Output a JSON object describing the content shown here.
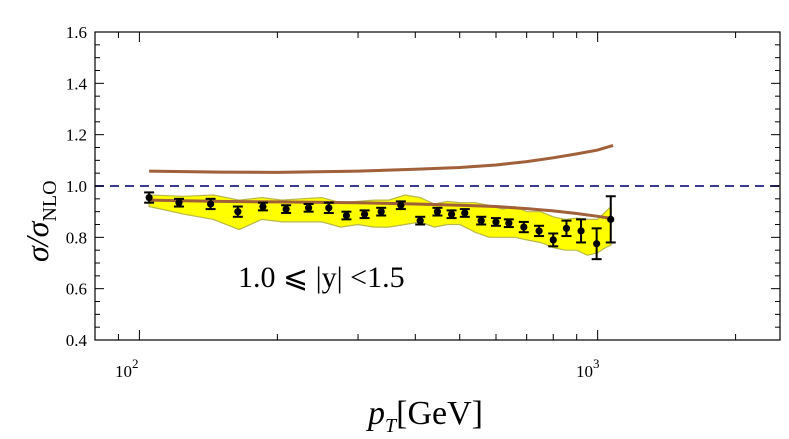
{
  "chart_data": {
    "type": "scatter",
    "x_scale": "log",
    "xlim": [
      80,
      2500
    ],
    "ylim": [
      0.4,
      1.6
    ],
    "y_ticks": [
      "0.4",
      "0.6",
      "0.8",
      "1.0",
      "1.2",
      "1.4",
      "1.6"
    ],
    "x_tick_labels": [
      {
        "base": "10",
        "exp": "2",
        "value": 100
      },
      {
        "base": "10",
        "exp": "3",
        "value": 1000
      }
    ],
    "ylabel": {
      "main": "σ/σ",
      "sub": "NLO"
    },
    "xlabel": {
      "main": "p",
      "sub": "T",
      "unit": "[GeV]"
    },
    "annotation": "1.0 ⩽ |y| <1.5",
    "reference_line": {
      "y": 1.0,
      "color": "#3b3b8f",
      "style": "dashed"
    },
    "band": {
      "color": "#ffff00",
      "edge_color": "#b8b84a",
      "upper": [
        [
          105,
          0.965
        ],
        [
          125,
          0.96
        ],
        [
          145,
          0.965
        ],
        [
          165,
          0.945
        ],
        [
          185,
          0.955
        ],
        [
          205,
          0.945
        ],
        [
          225,
          0.95
        ],
        [
          250,
          0.955
        ],
        [
          275,
          0.935
        ],
        [
          300,
          0.94
        ],
        [
          325,
          0.945
        ],
        [
          350,
          0.945
        ],
        [
          380,
          0.965
        ],
        [
          410,
          0.955
        ],
        [
          440,
          0.93
        ],
        [
          470,
          0.94
        ],
        [
          500,
          0.935
        ],
        [
          540,
          0.935
        ],
        [
          580,
          0.925
        ],
        [
          620,
          0.91
        ],
        [
          660,
          0.92
        ],
        [
          700,
          0.9
        ],
        [
          750,
          0.9
        ],
        [
          800,
          0.88
        ],
        [
          850,
          0.87
        ],
        [
          900,
          0.875
        ],
        [
          950,
          0.87
        ],
        [
          1000,
          0.87
        ],
        [
          1040,
          0.9
        ],
        [
          1070,
          0.92
        ]
      ],
      "lower": [
        [
          1070,
          0.77
        ],
        [
          1040,
          0.76
        ],
        [
          1000,
          0.74
        ],
        [
          950,
          0.73
        ],
        [
          900,
          0.75
        ],
        [
          850,
          0.75
        ],
        [
          800,
          0.76
        ],
        [
          750,
          0.78
        ],
        [
          700,
          0.79
        ],
        [
          660,
          0.8
        ],
        [
          620,
          0.8
        ],
        [
          580,
          0.8
        ],
        [
          540,
          0.82
        ],
        [
          500,
          0.85
        ],
        [
          470,
          0.85
        ],
        [
          440,
          0.84
        ],
        [
          410,
          0.86
        ],
        [
          380,
          0.85
        ],
        [
          350,
          0.84
        ],
        [
          325,
          0.84
        ],
        [
          300,
          0.85
        ],
        [
          275,
          0.84
        ],
        [
          250,
          0.86
        ],
        [
          225,
          0.86
        ],
        [
          205,
          0.86
        ],
        [
          185,
          0.87
        ],
        [
          165,
          0.83
        ],
        [
          145,
          0.87
        ],
        [
          125,
          0.89
        ],
        [
          105,
          0.92
        ]
      ]
    },
    "curves": [
      {
        "color": "#a0603a",
        "points": [
          [
            105,
            1.058
          ],
          [
            150,
            1.054
          ],
          [
            200,
            1.053
          ],
          [
            300,
            1.058
          ],
          [
            400,
            1.065
          ],
          [
            500,
            1.072
          ],
          [
            600,
            1.082
          ],
          [
            700,
            1.095
          ],
          [
            800,
            1.11
          ],
          [
            900,
            1.125
          ],
          [
            1000,
            1.14
          ],
          [
            1080,
            1.158
          ]
        ]
      },
      {
        "color": "#a0603a",
        "points": [
          [
            105,
            0.945
          ],
          [
            150,
            0.94
          ],
          [
            200,
            0.938
          ],
          [
            300,
            0.935
          ],
          [
            400,
            0.93
          ],
          [
            500,
            0.925
          ],
          [
            600,
            0.92
          ],
          [
            700,
            0.912
          ],
          [
            800,
            0.903
          ],
          [
            900,
            0.893
          ],
          [
            1000,
            0.882
          ],
          [
            1060,
            0.875
          ]
        ]
      }
    ],
    "points": [
      {
        "x": 105,
        "y": 0.955,
        "err": 0.02
      },
      {
        "x": 122,
        "y": 0.935,
        "err": 0.015
      },
      {
        "x": 143,
        "y": 0.93,
        "err": 0.02
      },
      {
        "x": 164,
        "y": 0.9,
        "err": 0.02
      },
      {
        "x": 186,
        "y": 0.92,
        "err": 0.015
      },
      {
        "x": 209,
        "y": 0.91,
        "err": 0.015
      },
      {
        "x": 234,
        "y": 0.915,
        "err": 0.015
      },
      {
        "x": 259,
        "y": 0.915,
        "err": 0.02
      },
      {
        "x": 283,
        "y": 0.885,
        "err": 0.015
      },
      {
        "x": 310,
        "y": 0.89,
        "err": 0.015
      },
      {
        "x": 337,
        "y": 0.9,
        "err": 0.015
      },
      {
        "x": 372,
        "y": 0.925,
        "err": 0.015
      },
      {
        "x": 410,
        "y": 0.865,
        "err": 0.015
      },
      {
        "x": 447,
        "y": 0.9,
        "err": 0.015
      },
      {
        "x": 480,
        "y": 0.89,
        "err": 0.015
      },
      {
        "x": 513,
        "y": 0.895,
        "err": 0.015
      },
      {
        "x": 557,
        "y": 0.865,
        "err": 0.015
      },
      {
        "x": 600,
        "y": 0.86,
        "err": 0.015
      },
      {
        "x": 640,
        "y": 0.855,
        "err": 0.015
      },
      {
        "x": 690,
        "y": 0.84,
        "err": 0.02
      },
      {
        "x": 745,
        "y": 0.825,
        "err": 0.02
      },
      {
        "x": 800,
        "y": 0.79,
        "err": 0.025
      },
      {
        "x": 855,
        "y": 0.835,
        "err": 0.03
      },
      {
        "x": 920,
        "y": 0.825,
        "err": 0.045
      },
      {
        "x": 995,
        "y": 0.775,
        "err": 0.06
      },
      {
        "x": 1068,
        "y": 0.87,
        "err": 0.09
      }
    ]
  }
}
